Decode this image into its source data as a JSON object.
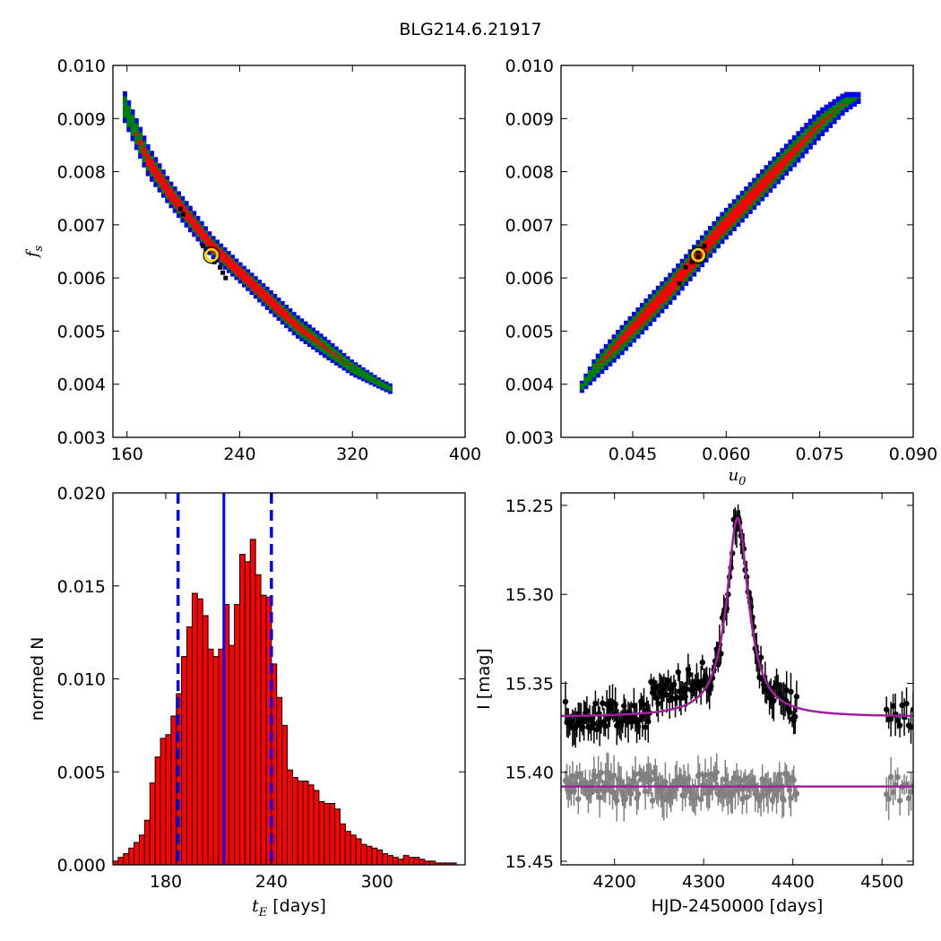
{
  "title": "BLG214.6.21917",
  "chart_data": [
    {
      "type": "heatmap",
      "id": "panel_tE_fs",
      "xlabel": "",
      "ylabel": "f_s",
      "xlim": [
        150,
        400
      ],
      "ylim": [
        0.003,
        0.01
      ],
      "xticks": [
        160,
        240,
        320,
        400
      ],
      "yticks": [
        0.003,
        0.004,
        0.005,
        0.006,
        0.007,
        0.008,
        0.009,
        0.01
      ],
      "colors": {
        "outer": "#0000ff",
        "middle": "#008000",
        "inner": "#ff0000",
        "samples": "#000000",
        "best": "#ffd700"
      },
      "band": {
        "x": [
          157,
          165,
          175,
          190,
          205,
          220,
          240,
          260,
          280,
          300,
          320,
          340,
          348
        ],
        "y": [
          0.0093,
          0.0088,
          0.0082,
          0.0076,
          0.0071,
          0.0066,
          0.0061,
          0.0056,
          0.0051,
          0.0047,
          0.0043,
          0.004,
          0.0039
        ],
        "width_outer": [
          0.0003,
          0.0003,
          0.0003,
          0.00025,
          0.00025,
          0.00022,
          0.0002,
          0.00022,
          0.00022,
          0.0002,
          0.00015,
          0.0001,
          0.0001
        ],
        "width_middle": [
          0.0002,
          0.0002,
          0.0002,
          0.00018,
          0.00016,
          0.00015,
          0.00014,
          0.00015,
          0.00015,
          0.00013,
          0.0001,
          6e-05,
          5e-05
        ],
        "width_inner": [
          0.0,
          0.0,
          0.00012,
          0.00012,
          0.0001,
          0.0001,
          0.0001,
          0.0001,
          7e-05,
          3e-05,
          0.0,
          0.0,
          0.0
        ]
      },
      "best_fit": {
        "x": 220,
        "y": 0.00643
      },
      "samples": [
        [
          198,
          0.0073
        ],
        [
          200,
          0.0072
        ],
        [
          214,
          0.0066
        ],
        [
          217,
          0.0065
        ],
        [
          222,
          0.0063
        ],
        [
          226,
          0.0062
        ],
        [
          228,
          0.0061
        ],
        [
          230,
          0.006
        ]
      ]
    },
    {
      "type": "heatmap",
      "id": "panel_u0_fs",
      "xlabel": "u_0",
      "ylabel": "",
      "xlim": [
        0.0335,
        0.09
      ],
      "ylim": [
        0.003,
        0.01
      ],
      "xticks": [
        0.045,
        0.06,
        0.075,
        0.09
      ],
      "xticklabels": [
        "0.045",
        "0.060",
        "0.075",
        "0.090"
      ],
      "yticks": [
        0.003,
        0.004,
        0.005,
        0.006,
        0.007,
        0.008,
        0.009,
        0.01
      ],
      "colors": {
        "outer": "#0000ff",
        "middle": "#008000",
        "inner": "#ff0000",
        "samples": "#000000",
        "best": "#ffd700"
      },
      "band": {
        "x": [
          0.0365,
          0.039,
          0.043,
          0.047,
          0.051,
          0.055,
          0.059,
          0.063,
          0.067,
          0.071,
          0.075,
          0.079,
          0.0815
        ],
        "y": [
          0.0039,
          0.0043,
          0.0048,
          0.0053,
          0.0058,
          0.00635,
          0.0069,
          0.0074,
          0.0079,
          0.0084,
          0.0089,
          0.0093,
          0.0094
        ],
        "width_outer": [
          0.0001,
          0.00022,
          0.00028,
          0.0003,
          0.0003,
          0.0003,
          0.0003,
          0.0003,
          0.0003,
          0.0003,
          0.00028,
          0.0002,
          0.0001
        ],
        "width_middle": [
          5e-05,
          0.00014,
          0.0002,
          0.00022,
          0.00022,
          0.00022,
          0.00022,
          0.00022,
          0.00022,
          0.0002,
          0.00016,
          0.0001,
          0.0
        ],
        "width_inner": [
          0.0,
          0.0,
          8e-05,
          0.00012,
          0.00013,
          0.00013,
          0.00013,
          0.00013,
          0.00012,
          8e-05,
          4e-05,
          0.0,
          0.0
        ]
      },
      "best_fit": {
        "x": 0.0555,
        "y": 0.00643
      },
      "samples": [
        [
          0.0535,
          0.0062
        ],
        [
          0.0545,
          0.0063
        ],
        [
          0.0555,
          0.0064
        ],
        [
          0.0565,
          0.0066
        ],
        [
          0.0555,
          0.0065
        ],
        [
          0.0525,
          0.0059
        ]
      ]
    },
    {
      "type": "bar",
      "id": "panel_tE_hist",
      "xlabel": "t_E  [days]",
      "ylabel": "normed N",
      "xlim": [
        150,
        350
      ],
      "ylim": [
        0,
        0.02
      ],
      "xticks": [
        180,
        240,
        300
      ],
      "yticks": [
        0.0,
        0.005,
        0.01,
        0.015,
        0.02
      ],
      "ytick_labels": [
        "0.000",
        "0.005",
        "0.010",
        "0.015",
        "0.020"
      ],
      "bar_color": "#ff0000",
      "bin_start": 150,
      "bin_width": 3,
      "values": [
        0.0002,
        0.0004,
        0.0006,
        0.0009,
        0.0012,
        0.0016,
        0.0024,
        0.0044,
        0.0058,
        0.0068,
        0.007,
        0.008,
        0.0092,
        0.0112,
        0.0128,
        0.0146,
        0.0143,
        0.0134,
        0.0116,
        0.0112,
        0.0116,
        0.014,
        0.0118,
        0.014,
        0.0167,
        0.0163,
        0.0175,
        0.0156,
        0.0145,
        0.0144,
        0.0108,
        0.009,
        0.0075,
        0.0051,
        0.0047,
        0.0045,
        0.0045,
        0.0043,
        0.004,
        0.0034,
        0.0033,
        0.0033,
        0.003,
        0.0022,
        0.0018,
        0.0016,
        0.0014,
        0.0011,
        0.001,
        0.0009,
        0.0008,
        0.0006,
        0.0005,
        0.0004,
        0.0003,
        0.0005,
        0.0004,
        0.0004,
        0.0003,
        0.0002,
        0.0002,
        0.0001,
        0.0001,
        0.0001,
        0.0001
      ],
      "median": 213,
      "lower": 187,
      "upper": 240
    },
    {
      "type": "scatter",
      "id": "panel_lightcurve",
      "xlabel": "HJD-2450000 [days]",
      "ylabel": "I [mag]",
      "xlim": [
        4140,
        4535
      ],
      "ylim": [
        15.452,
        15.243
      ],
      "xticks": [
        4200,
        4300,
        4400,
        4500
      ],
      "yticks": [
        15.25,
        15.3,
        15.35,
        15.4,
        15.45
      ],
      "ytick_labels": [
        "15.25",
        "15.30",
        "15.35",
        "15.40",
        "15.45"
      ],
      "model_color": "#a020a0",
      "model": {
        "t0": 4338,
        "baseline": 15.369,
        "peak": 15.257,
        "tau": 22
      },
      "residual_baseline": 15.408,
      "data_color": "#000000",
      "residual_color": "#808080",
      "season1": {
        "start": 4145,
        "end": 4405
      },
      "season2": {
        "start": 4505,
        "end": 4535
      }
    }
  ]
}
